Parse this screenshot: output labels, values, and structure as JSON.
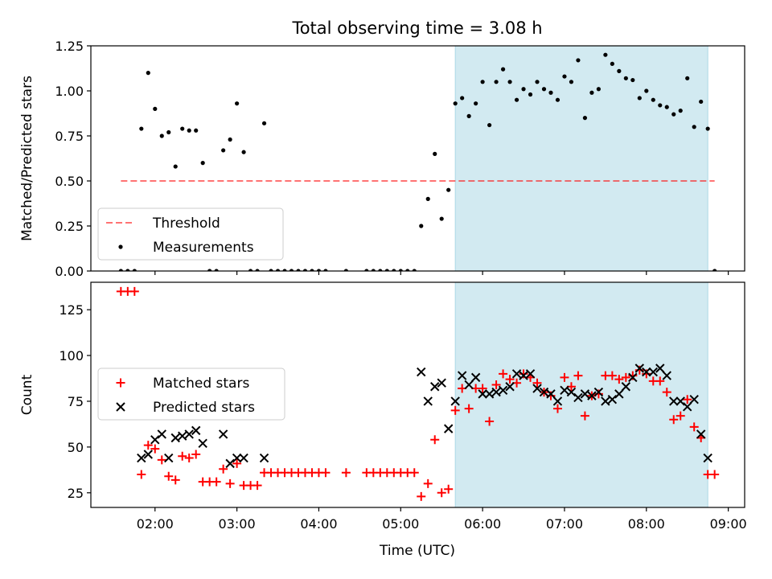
{
  "figure": {
    "title": "Total observing time = 3.08 h",
    "xlabel": "Time (UTC)"
  },
  "colors": {
    "highlight": "#add8e6",
    "threshold": "#ff0000",
    "measurements": "#000000",
    "matched": "#ff0000",
    "predicted": "#000000"
  },
  "chart_data": [
    {
      "type": "scatter",
      "ylabel": "Matched/Predicted stars",
      "xlim": [
        "01:13",
        "09:12"
      ],
      "ylim": [
        0,
        1.25
      ],
      "yticks": [
        0.0,
        0.25,
        0.5,
        0.75,
        1.0,
        1.25
      ],
      "ytick_labels": [
        "0.00",
        "0.25",
        "0.50",
        "0.75",
        "1.00",
        "1.25"
      ],
      "xticks": [
        "02:00",
        "03:00",
        "04:00",
        "05:00",
        "06:00",
        "07:00",
        "08:00",
        "09:00"
      ],
      "highlight_span": [
        "05:40",
        "08:45"
      ],
      "legend": {
        "location": "lower-left",
        "entries": [
          "Threshold",
          "Measurements"
        ]
      },
      "threshold": {
        "name": "Threshold",
        "value": 0.5,
        "x_range": [
          "01:35",
          "08:50"
        ]
      },
      "series": [
        {
          "name": "Measurements",
          "points": [
            [
              "01:35",
              0.0
            ],
            [
              "01:40",
              0.0
            ],
            [
              "01:45",
              0.0
            ],
            [
              "01:50",
              0.79
            ],
            [
              "01:55",
              1.1
            ],
            [
              "02:00",
              0.9
            ],
            [
              "02:05",
              0.75
            ],
            [
              "02:10",
              0.77
            ],
            [
              "02:15",
              0.58
            ],
            [
              "02:20",
              0.79
            ],
            [
              "02:25",
              0.78
            ],
            [
              "02:30",
              0.78
            ],
            [
              "02:35",
              0.6
            ],
            [
              "02:40",
              0.0
            ],
            [
              "02:45",
              0.0
            ],
            [
              "02:50",
              0.67
            ],
            [
              "02:55",
              0.73
            ],
            [
              "03:00",
              0.93
            ],
            [
              "03:05",
              0.66
            ],
            [
              "03:10",
              0.0
            ],
            [
              "03:15",
              0.0
            ],
            [
              "03:20",
              0.82
            ],
            [
              "03:25",
              0.0
            ],
            [
              "03:30",
              0.0
            ],
            [
              "03:35",
              0.0
            ],
            [
              "03:40",
              0.0
            ],
            [
              "03:45",
              0.0
            ],
            [
              "03:50",
              0.0
            ],
            [
              "03:55",
              0.0
            ],
            [
              "04:00",
              0.0
            ],
            [
              "04:05",
              0.0
            ],
            [
              "04:20",
              0.0
            ],
            [
              "04:35",
              0.0
            ],
            [
              "04:40",
              0.0
            ],
            [
              "04:45",
              0.0
            ],
            [
              "04:50",
              0.0
            ],
            [
              "04:55",
              0.0
            ],
            [
              "05:00",
              0.0
            ],
            [
              "05:05",
              0.0
            ],
            [
              "05:10",
              0.0
            ],
            [
              "05:15",
              0.25
            ],
            [
              "05:20",
              0.4
            ],
            [
              "05:25",
              0.65
            ],
            [
              "05:30",
              0.29
            ],
            [
              "05:35",
              0.45
            ],
            [
              "05:40",
              0.93
            ],
            [
              "05:45",
              0.96
            ],
            [
              "05:50",
              0.86
            ],
            [
              "05:55",
              0.93
            ],
            [
              "06:00",
              1.05
            ],
            [
              "06:05",
              0.81
            ],
            [
              "06:10",
              1.05
            ],
            [
              "06:15",
              1.12
            ],
            [
              "06:20",
              1.05
            ],
            [
              "06:25",
              0.95
            ],
            [
              "06:30",
              1.01
            ],
            [
              "06:35",
              0.98
            ],
            [
              "06:40",
              1.05
            ],
            [
              "06:45",
              1.01
            ],
            [
              "06:50",
              0.99
            ],
            [
              "06:55",
              0.95
            ],
            [
              "07:00",
              1.08
            ],
            [
              "07:05",
              1.05
            ],
            [
              "07:10",
              1.17
            ],
            [
              "07:15",
              0.85
            ],
            [
              "07:20",
              0.99
            ],
            [
              "07:25",
              1.01
            ],
            [
              "07:30",
              1.2
            ],
            [
              "07:35",
              1.15
            ],
            [
              "07:40",
              1.11
            ],
            [
              "07:45",
              1.07
            ],
            [
              "07:50",
              1.06
            ],
            [
              "07:55",
              0.96
            ],
            [
              "08:00",
              1.0
            ],
            [
              "08:05",
              0.95
            ],
            [
              "08:10",
              0.92
            ],
            [
              "08:15",
              0.91
            ],
            [
              "08:20",
              0.87
            ],
            [
              "08:25",
              0.89
            ],
            [
              "08:30",
              1.07
            ],
            [
              "08:35",
              0.8
            ],
            [
              "08:40",
              0.94
            ],
            [
              "08:45",
              0.79
            ],
            [
              "08:50",
              0.0
            ]
          ]
        }
      ]
    },
    {
      "type": "scatter",
      "ylabel": "Count",
      "xlabel": "Time (UTC)",
      "xlim": [
        "01:13",
        "09:12"
      ],
      "ylim": [
        17,
        140
      ],
      "yticks": [
        25,
        50,
        75,
        100,
        125
      ],
      "ytick_labels": [
        "25",
        "50",
        "75",
        "100",
        "125"
      ],
      "xticks": [
        "02:00",
        "03:00",
        "04:00",
        "05:00",
        "06:00",
        "07:00",
        "08:00",
        "09:00"
      ],
      "xtick_labels": [
        "02:00",
        "03:00",
        "04:00",
        "05:00",
        "06:00",
        "07:00",
        "08:00",
        "09:00"
      ],
      "highlight_span": [
        "05:40",
        "08:45"
      ],
      "legend": {
        "location": "center-left",
        "entries": [
          "Matched stars",
          "Predicted stars"
        ]
      },
      "series": [
        {
          "name": "Matched stars",
          "marker": "+",
          "points": [
            [
              "01:35",
              135
            ],
            [
              "01:40",
              135
            ],
            [
              "01:45",
              135
            ],
            [
              "01:50",
              35
            ],
            [
              "01:55",
              51
            ],
            [
              "02:00",
              49
            ],
            [
              "02:05",
              43
            ],
            [
              "02:10",
              34
            ],
            [
              "02:15",
              32
            ],
            [
              "02:20",
              45
            ],
            [
              "02:25",
              44
            ],
            [
              "02:30",
              46
            ],
            [
              "02:35",
              31
            ],
            [
              "02:40",
              31
            ],
            [
              "02:45",
              31
            ],
            [
              "02:50",
              38
            ],
            [
              "02:55",
              30
            ],
            [
              "03:00",
              41
            ],
            [
              "03:05",
              29
            ],
            [
              "03:10",
              29
            ],
            [
              "03:15",
              29
            ],
            [
              "03:20",
              36
            ],
            [
              "03:25",
              36
            ],
            [
              "03:30",
              36
            ],
            [
              "03:35",
              36
            ],
            [
              "03:40",
              36
            ],
            [
              "03:45",
              36
            ],
            [
              "03:50",
              36
            ],
            [
              "03:55",
              36
            ],
            [
              "04:00",
              36
            ],
            [
              "04:05",
              36
            ],
            [
              "04:20",
              36
            ],
            [
              "04:35",
              36
            ],
            [
              "04:40",
              36
            ],
            [
              "04:45",
              36
            ],
            [
              "04:50",
              36
            ],
            [
              "04:55",
              36
            ],
            [
              "05:00",
              36
            ],
            [
              "05:05",
              36
            ],
            [
              "05:10",
              36
            ],
            [
              "05:15",
              23
            ],
            [
              "05:20",
              30
            ],
            [
              "05:25",
              54
            ],
            [
              "05:30",
              25
            ],
            [
              "05:35",
              27
            ],
            [
              "05:40",
              70
            ],
            [
              "05:45",
              82
            ],
            [
              "05:50",
              71
            ],
            [
              "05:55",
              82
            ],
            [
              "06:00",
              82
            ],
            [
              "06:05",
              64
            ],
            [
              "06:10",
              84
            ],
            [
              "06:15",
              90
            ],
            [
              "06:20",
              87
            ],
            [
              "06:25",
              85
            ],
            [
              "06:30",
              90
            ],
            [
              "06:35",
              88
            ],
            [
              "06:40",
              85
            ],
            [
              "06:45",
              80
            ],
            [
              "06:50",
              78
            ],
            [
              "06:55",
              71
            ],
            [
              "07:00",
              88
            ],
            [
              "07:05",
              83
            ],
            [
              "07:10",
              89
            ],
            [
              "07:15",
              67
            ],
            [
              "07:20",
              78
            ],
            [
              "07:25",
              79
            ],
            [
              "07:30",
              89
            ],
            [
              "07:35",
              89
            ],
            [
              "07:40",
              87
            ],
            [
              "07:45",
              88
            ],
            [
              "07:50",
              89
            ],
            [
              "07:55",
              92
            ],
            [
              "08:00",
              90
            ],
            [
              "08:05",
              86
            ],
            [
              "08:10",
              86
            ],
            [
              "08:15",
              80
            ],
            [
              "08:20",
              65
            ],
            [
              "08:25",
              67
            ],
            [
              "08:30",
              76
            ],
            [
              "08:35",
              61
            ],
            [
              "08:40",
              55
            ],
            [
              "08:45",
              35
            ],
            [
              "08:50",
              35
            ]
          ]
        },
        {
          "name": "Predicted stars",
          "marker": "x",
          "points": [
            [
              "01:50",
              44
            ],
            [
              "01:55",
              46
            ],
            [
              "02:00",
              54
            ],
            [
              "02:05",
              57
            ],
            [
              "02:10",
              44
            ],
            [
              "02:15",
              55
            ],
            [
              "02:20",
              56
            ],
            [
              "02:25",
              57
            ],
            [
              "02:30",
              59
            ],
            [
              "02:35",
              52
            ],
            [
              "02:50",
              57
            ],
            [
              "02:55",
              41
            ],
            [
              "03:00",
              44
            ],
            [
              "03:05",
              44
            ],
            [
              "03:20",
              44
            ],
            [
              "05:15",
              91
            ],
            [
              "05:20",
              75
            ],
            [
              "05:25",
              83
            ],
            [
              "05:30",
              85
            ],
            [
              "05:35",
              60
            ],
            [
              "05:40",
              75
            ],
            [
              "05:45",
              89
            ],
            [
              "05:50",
              84
            ],
            [
              "05:55",
              88
            ],
            [
              "06:00",
              79
            ],
            [
              "06:05",
              79
            ],
            [
              "06:10",
              80
            ],
            [
              "06:15",
              81
            ],
            [
              "06:20",
              83
            ],
            [
              "06:25",
              90
            ],
            [
              "06:30",
              89
            ],
            [
              "06:35",
              90
            ],
            [
              "06:40",
              82
            ],
            [
              "06:45",
              80
            ],
            [
              "06:50",
              79
            ],
            [
              "06:55",
              75
            ],
            [
              "07:00",
              81
            ],
            [
              "07:05",
              80
            ],
            [
              "07:10",
              77
            ],
            [
              "07:15",
              79
            ],
            [
              "07:20",
              78
            ],
            [
              "07:25",
              80
            ],
            [
              "07:30",
              75
            ],
            [
              "07:35",
              76
            ],
            [
              "07:40",
              79
            ],
            [
              "07:45",
              83
            ],
            [
              "07:50",
              88
            ],
            [
              "07:55",
              93
            ],
            [
              "08:00",
              91
            ],
            [
              "08:05",
              91
            ],
            [
              "08:10",
              93
            ],
            [
              "08:15",
              89
            ],
            [
              "08:20",
              75
            ],
            [
              "08:25",
              75
            ],
            [
              "08:30",
              72
            ],
            [
              "08:35",
              76
            ],
            [
              "08:40",
              57
            ],
            [
              "08:45",
              44
            ]
          ]
        }
      ]
    }
  ]
}
